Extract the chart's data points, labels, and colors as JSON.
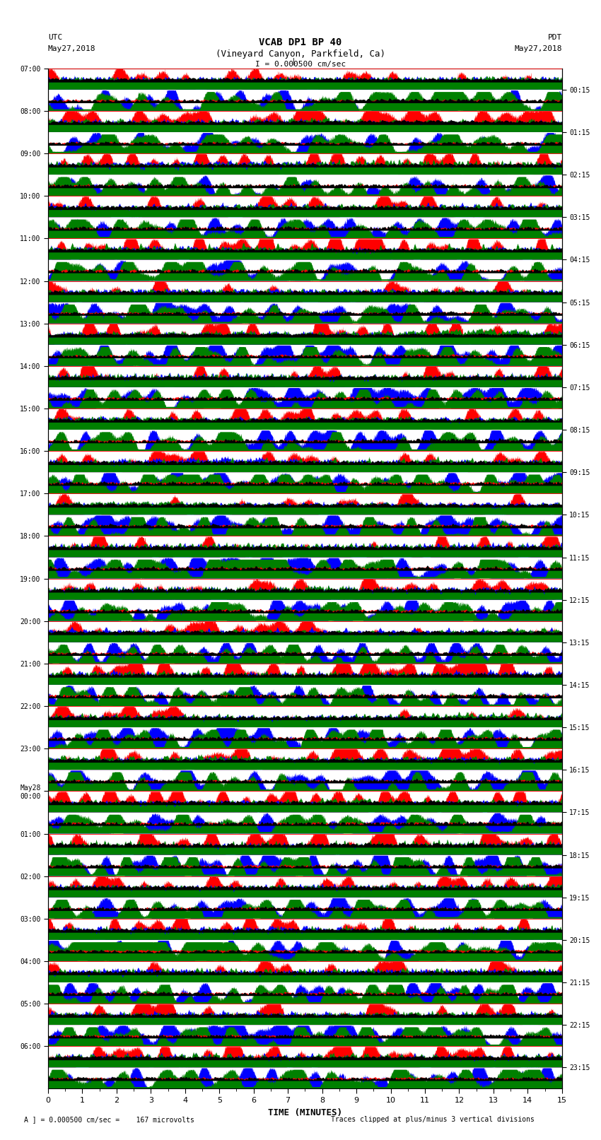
{
  "title_line1": "VCAB DP1 BP 40",
  "title_line2": "(Vineyard Canyon, Parkfield, Ca)",
  "scale_label": "I = 0.000500 cm/sec",
  "left_timezone": "UTC",
  "left_date": "May27,2018",
  "right_timezone": "PDT",
  "right_date": "May27,2018",
  "left_times": [
    "07:00",
    "08:00",
    "09:00",
    "10:00",
    "11:00",
    "12:00",
    "13:00",
    "14:00",
    "15:00",
    "16:00",
    "17:00",
    "18:00",
    "19:00",
    "20:00",
    "21:00",
    "22:00",
    "23:00",
    "May28\n00:00",
    "01:00",
    "02:00",
    "03:00",
    "04:00",
    "05:00",
    "06:00"
  ],
  "right_times": [
    "00:15",
    "01:15",
    "02:15",
    "03:15",
    "04:15",
    "05:15",
    "06:15",
    "07:15",
    "08:15",
    "09:15",
    "10:15",
    "11:15",
    "12:15",
    "13:15",
    "14:15",
    "15:15",
    "16:15",
    "17:15",
    "18:15",
    "19:15",
    "20:15",
    "21:15",
    "22:15",
    "23:15"
  ],
  "xlabel": "TIME (MINUTES)",
  "xmin": 0,
  "xmax": 15,
  "n_rows": 48,
  "bottom_label1": "A ] = 0.000500 cm/sec =    167 microvolts",
  "bottom_label2": "Traces clipped at plus/minus 3 vertical divisions",
  "background": "#ffffff",
  "plot_bg": "#ffffff",
  "fig_width": 8.5,
  "fig_height": 16.13,
  "dpi": 100
}
